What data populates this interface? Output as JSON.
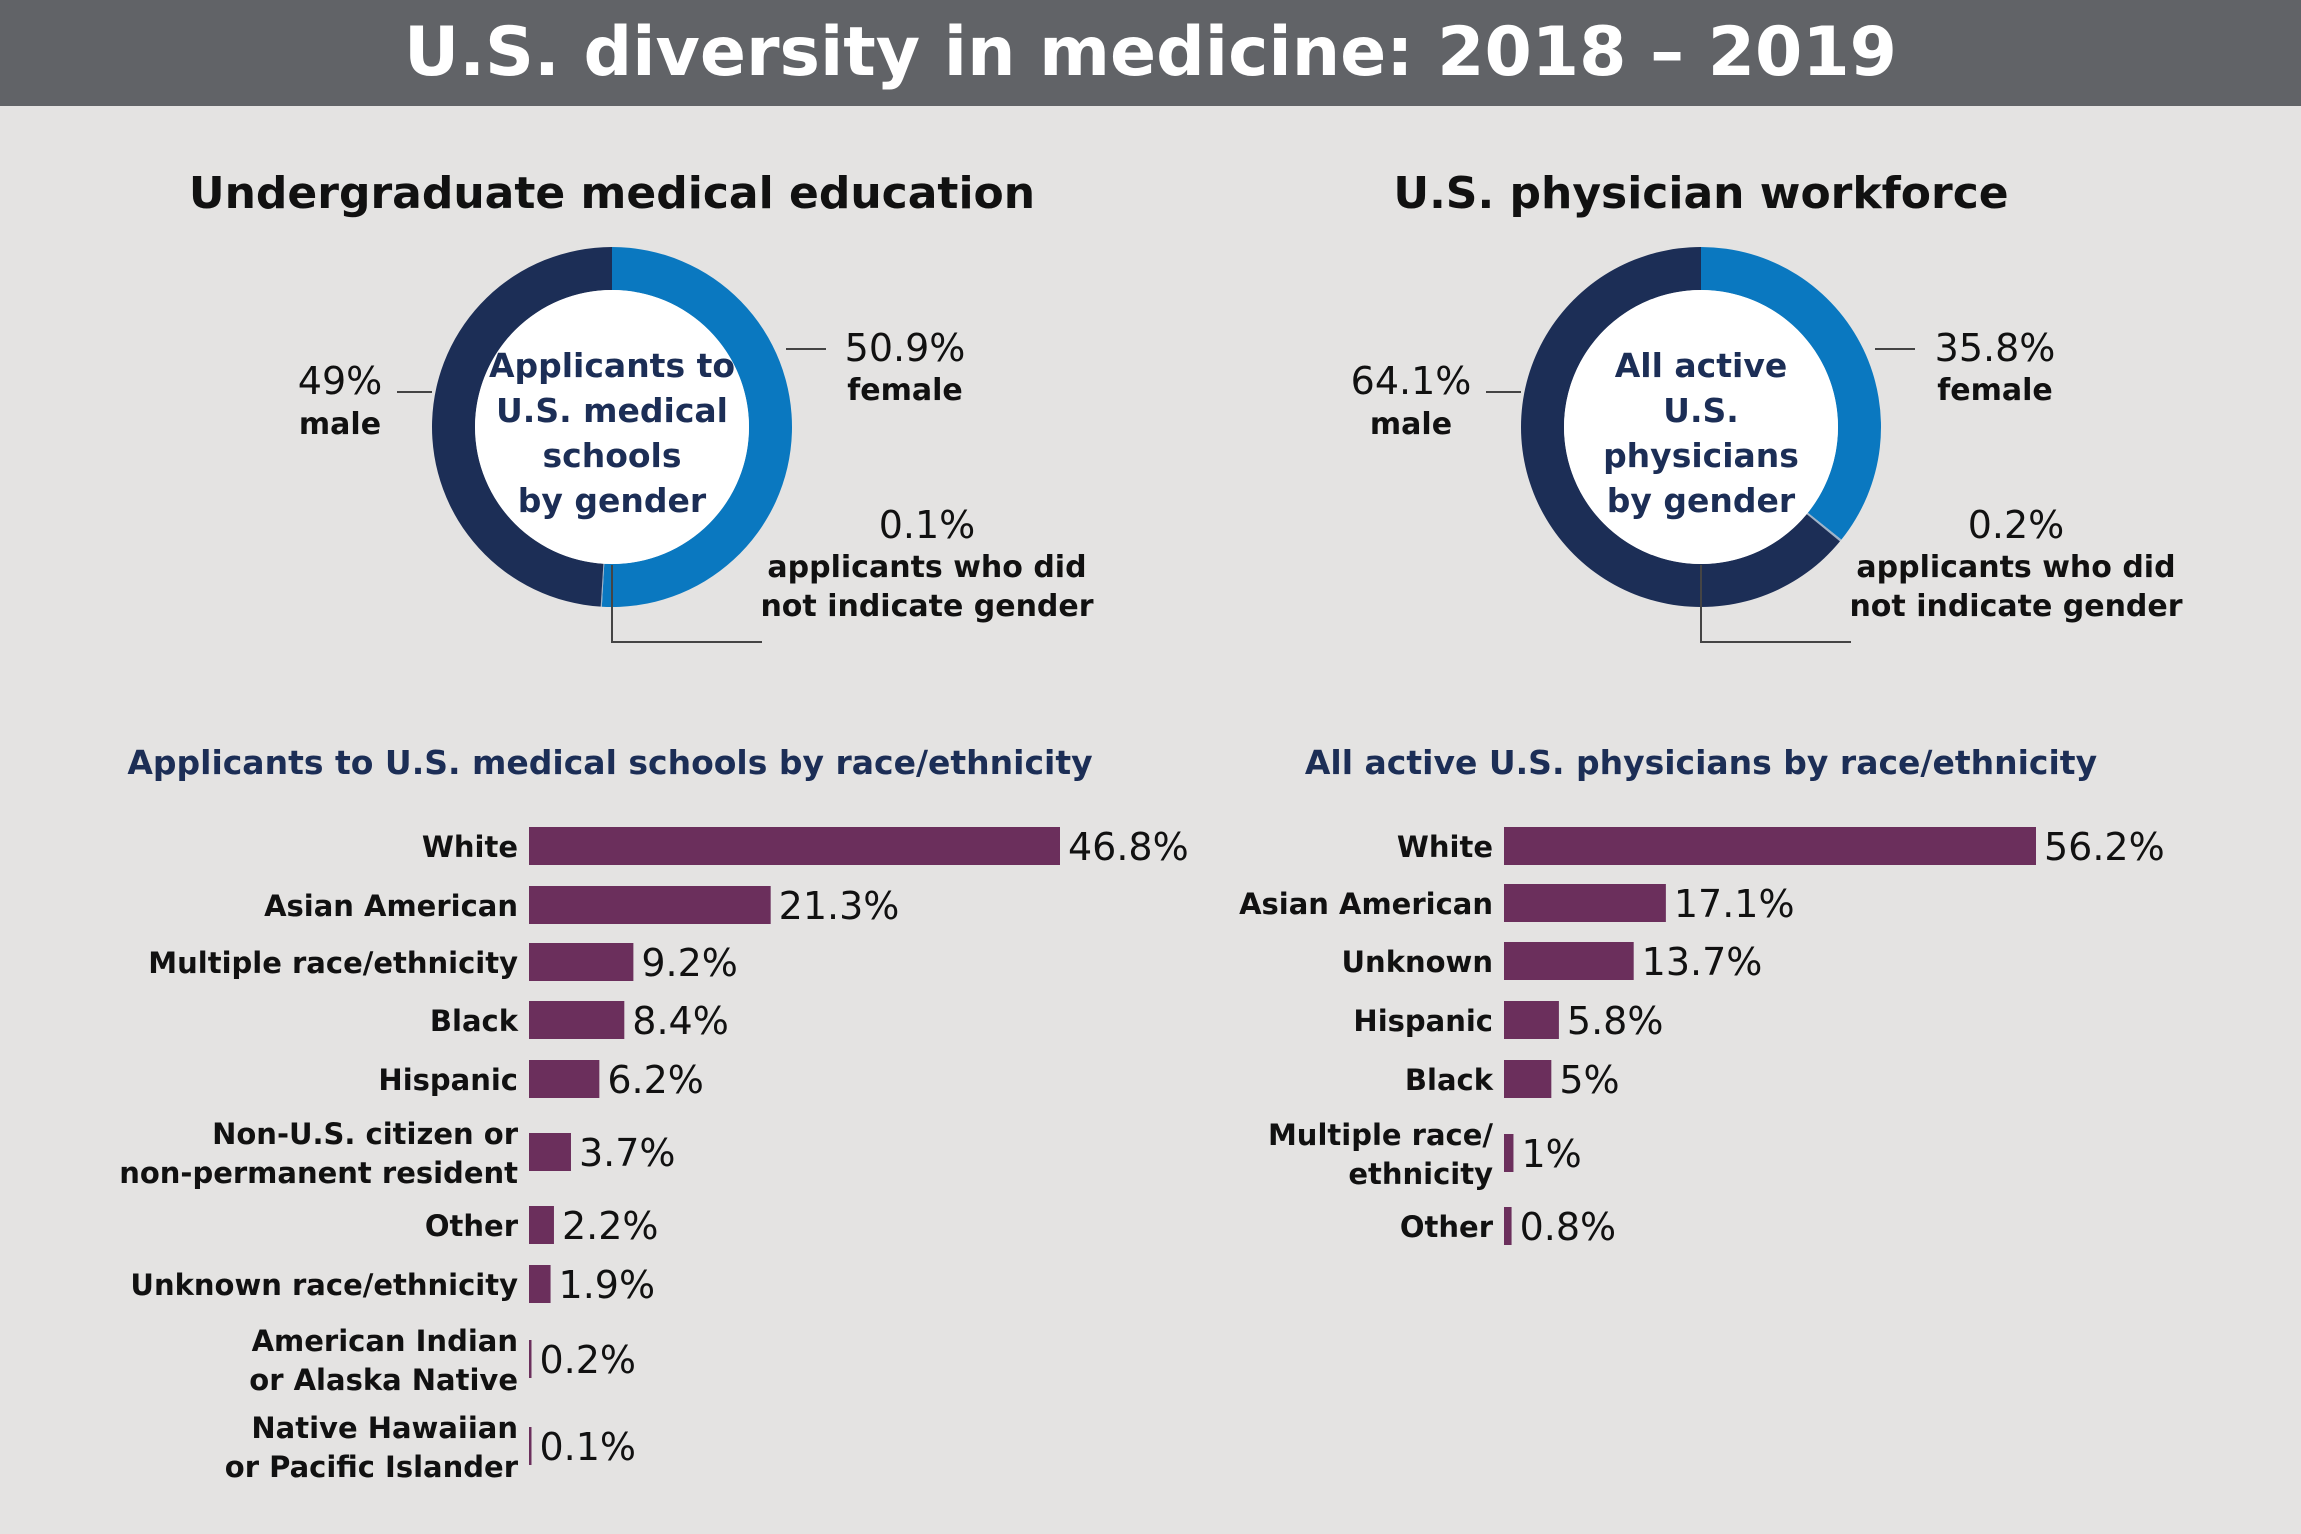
{
  "title": "U.S. diversity in medicine: 2018 – 2019",
  "colors": {
    "header_bg": "#616367",
    "background": "#e4e3e2",
    "navy": "#1c2e56",
    "blue": "#0a78c0",
    "bar": "#6b2f5c",
    "leader": "#444444"
  },
  "left_section_title": "Undergraduate medical education",
  "right_section_title": "U.S. physician workforce",
  "chart_data": [
    {
      "type": "pie",
      "style": "donut",
      "center_label": [
        "Applicants to",
        "U.S. medical",
        "schools",
        "by gender"
      ],
      "slices": [
        {
          "key": "male",
          "value": 49,
          "pct_label": "49%",
          "label": "male"
        },
        {
          "key": "female",
          "value": 50.9,
          "pct_label": "50.9%",
          "label": "female"
        },
        {
          "key": "not_indicated",
          "value": 0.1,
          "pct_label": "0.1%",
          "label": "applicants who did not indicate gender",
          "label_lines": [
            "applicants who did",
            "not indicate gender"
          ]
        }
      ]
    },
    {
      "type": "pie",
      "style": "donut",
      "center_label": [
        "All active",
        "U.S.",
        "physicians",
        "by gender"
      ],
      "slices": [
        {
          "key": "male",
          "value": 64.1,
          "pct_label": "64.1%",
          "label": "male"
        },
        {
          "key": "female",
          "value": 35.8,
          "pct_label": "35.8%",
          "label": "female"
        },
        {
          "key": "not_indicated",
          "value": 0.2,
          "pct_label": "0.2%",
          "label": "applicants who did not indicate gender",
          "label_lines": [
            "applicants who did",
            "not indicate gender"
          ]
        }
      ]
    },
    {
      "type": "bar",
      "orientation": "horizontal",
      "title": "Applicants to U.S. medical schools by race/ethnicity",
      "categories": [
        "White",
        "Asian American",
        "Multiple race/ethnicity",
        "Black",
        "Hispanic",
        "Non-U.S. citizen or non-permanent resident",
        "Other",
        "Unknown race/ethnicity",
        "American Indian or Alaska Native",
        "Native Hawaiian or Pacific Islander"
      ],
      "category_lines": [
        [
          "White"
        ],
        [
          "Asian American"
        ],
        [
          "Multiple race/ethnicity"
        ],
        [
          "Black"
        ],
        [
          "Hispanic"
        ],
        [
          "Non-U.S. citizen or",
          "non-permanent resident"
        ],
        [
          "Other"
        ],
        [
          "Unknown race/ethnicity"
        ],
        [
          "American Indian",
          "or Alaska Native"
        ],
        [
          "Native Hawaiian",
          "or Pacific Islander"
        ]
      ],
      "values": [
        46.8,
        21.3,
        9.2,
        8.4,
        6.2,
        3.7,
        2.2,
        1.9,
        0.2,
        0.1
      ],
      "value_labels": [
        "46.8%",
        "21.3%",
        "9.2%",
        "8.4%",
        "6.2%",
        "3.7%",
        "2.2%",
        "1.9%",
        "0.2%",
        "0.1%"
      ],
      "xlim": [
        0,
        46.8
      ]
    },
    {
      "type": "bar",
      "orientation": "horizontal",
      "title": "All active U.S. physicians by race/ethnicity",
      "categories": [
        "White",
        "Asian American",
        "Unknown",
        "Hispanic",
        "Black",
        "Multiple race/ethnicity",
        "Other"
      ],
      "category_lines": [
        [
          "White"
        ],
        [
          "Asian American"
        ],
        [
          "Unknown"
        ],
        [
          "Hispanic"
        ],
        [
          "Black"
        ],
        [
          "Multiple race/",
          "ethnicity"
        ],
        [
          "Other"
        ]
      ],
      "values": [
        56.2,
        17.1,
        13.7,
        5.8,
        5,
        1,
        0.8
      ],
      "value_labels": [
        "56.2%",
        "17.1%",
        "13.7%",
        "5.8%",
        "5%",
        "1%",
        "0.8%"
      ],
      "xlim": [
        0,
        56.2
      ]
    }
  ]
}
